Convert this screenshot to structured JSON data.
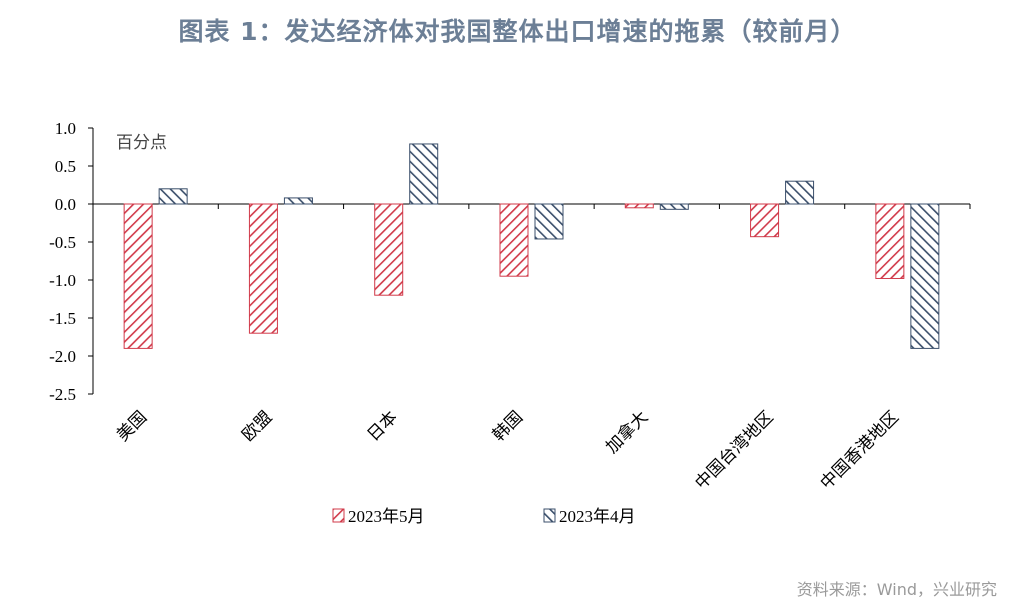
{
  "chart_data": {
    "type": "bar",
    "title": "图表 1：发达经济体对我国整体出口增速的拖累（较前月）",
    "ylabel": "百分点",
    "categories": [
      "美国",
      "欧盟",
      "日本",
      "韩国",
      "加拿大",
      "中国台湾地区",
      "中国香港地区"
    ],
    "series": [
      {
        "name": "2023年5月",
        "values": [
          -1.9,
          -1.7,
          -1.2,
          -0.95,
          -0.05,
          -0.43,
          -0.98
        ],
        "color": "#d13a4a",
        "pattern": "hatch-red"
      },
      {
        "name": "2023年4月",
        "values": [
          0.2,
          0.08,
          0.79,
          -0.46,
          -0.07,
          0.3,
          -1.9
        ],
        "color": "#3b4f6b",
        "pattern": "hatch-blue"
      }
    ],
    "ylim": [
      -2.5,
      1.0
    ],
    "yticks": [
      "1.0",
      "0.5",
      "0.0",
      "-0.5",
      "-1.0",
      "-1.5",
      "-2.0",
      "-2.5"
    ],
    "ytick_values": [
      1.0,
      0.5,
      0.0,
      -0.5,
      -1.0,
      -1.5,
      -2.0,
      -2.5
    ],
    "legend_position": "bottom-center"
  },
  "source": "资料来源：Wind，兴业研究"
}
